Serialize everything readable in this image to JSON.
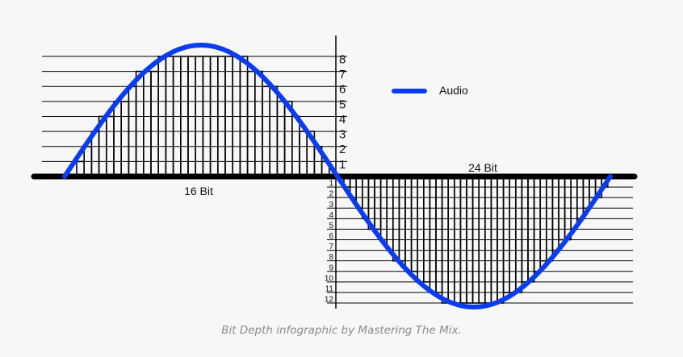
{
  "diagram": {
    "upper_levels": [
      "1",
      "2",
      "3",
      "4",
      "5",
      "6",
      "7",
      "8"
    ],
    "lower_levels": [
      "1",
      "2",
      "3",
      "4",
      "5",
      "6",
      "7",
      "8",
      "9",
      "10",
      "11",
      "12"
    ],
    "label_16bit": "16 Bit",
    "label_24bit": "24 Bit",
    "legend_label": "Audio",
    "colors": {
      "audio": "#0a3cf0",
      "lines": "#000000",
      "background": "#f7f7f7"
    }
  },
  "caption": "Bit Depth infographic by Mastering The Mix."
}
